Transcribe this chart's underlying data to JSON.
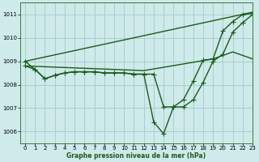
{
  "title": "Graphe pression niveau de la mer (hPa)",
  "background_color": "#ceeaea",
  "grid_color": "#aacece",
  "line_color": "#1a5c1a",
  "xlim": [
    -0.5,
    23
  ],
  "ylim": [
    1005.5,
    1011.5
  ],
  "yticks": [
    1006,
    1007,
    1008,
    1009,
    1010,
    1011
  ],
  "xticks": [
    0,
    1,
    2,
    3,
    4,
    5,
    6,
    7,
    8,
    9,
    10,
    11,
    12,
    13,
    14,
    15,
    16,
    17,
    18,
    19,
    20,
    21,
    22,
    23
  ],
  "lines": [
    {
      "x": [
        0,
        23
      ],
      "y": [
        1009.0,
        1011.1
      ],
      "marker": null,
      "linewidth": 1.0
    },
    {
      "x": [
        0,
        12,
        19,
        21,
        23
      ],
      "y": [
        1008.8,
        1008.6,
        1009.1,
        1009.4,
        1009.1
      ],
      "marker": null,
      "linewidth": 1.0
    },
    {
      "x": [
        0,
        1,
        2,
        3,
        4,
        5,
        6,
        7,
        8,
        9,
        10,
        11,
        12,
        13,
        14,
        15,
        16,
        17,
        18,
        19,
        20,
        21,
        22,
        23
      ],
      "y": [
        1008.8,
        1008.65,
        1008.25,
        1008.4,
        1008.5,
        1008.55,
        1008.55,
        1008.55,
        1008.5,
        1008.5,
        1008.5,
        1008.45,
        1008.45,
        1006.4,
        1005.9,
        1007.05,
        1007.05,
        1007.35,
        1008.1,
        1009.0,
        1009.3,
        1010.25,
        1010.65,
        1011.0
      ],
      "marker": "+",
      "markersize": 4.0,
      "linewidth": 1.0
    },
    {
      "x": [
        0,
        1,
        2,
        3,
        4,
        5,
        6,
        7,
        8,
        9,
        10,
        11,
        12,
        13,
        14,
        15,
        16,
        17,
        18,
        19,
        20,
        21,
        22,
        23
      ],
      "y": [
        1009.0,
        1008.65,
        1008.25,
        1008.4,
        1008.5,
        1008.55,
        1008.55,
        1008.55,
        1008.5,
        1008.5,
        1008.5,
        1008.45,
        1008.45,
        1008.45,
        1007.05,
        1007.05,
        1007.35,
        1008.15,
        1009.05,
        1009.1,
        1010.3,
        1010.7,
        1011.0,
        1011.05
      ],
      "marker": "+",
      "markersize": 4.0,
      "linewidth": 1.0
    }
  ]
}
